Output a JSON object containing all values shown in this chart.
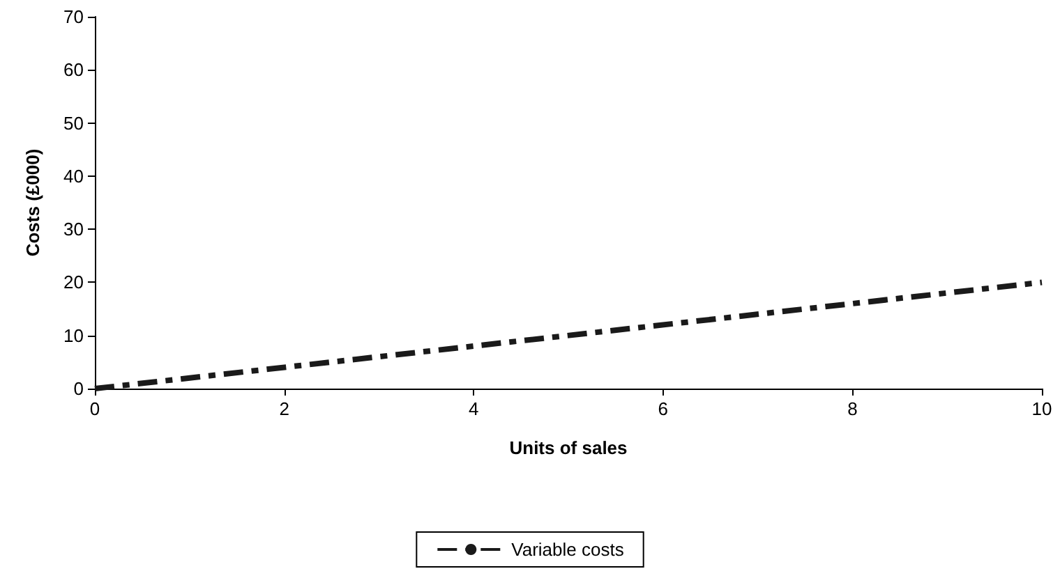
{
  "chart_data": {
    "type": "line",
    "xlabel": "Units of sales",
    "ylabel": "Costs (£000)",
    "x": [
      0,
      10
    ],
    "series": [
      {
        "name": "Variable costs",
        "color": "#1a1a1a",
        "values": [
          0,
          20
        ]
      }
    ],
    "xlim": [
      0,
      10
    ],
    "xticks": [
      0,
      2,
      4,
      6,
      8,
      10
    ],
    "ylim": [
      0,
      70
    ],
    "yticks": [
      0,
      10,
      20,
      30,
      40,
      50,
      60,
      70
    ],
    "grid": false,
    "legend": "bottom",
    "marker": "none",
    "line_style": "dashed"
  }
}
